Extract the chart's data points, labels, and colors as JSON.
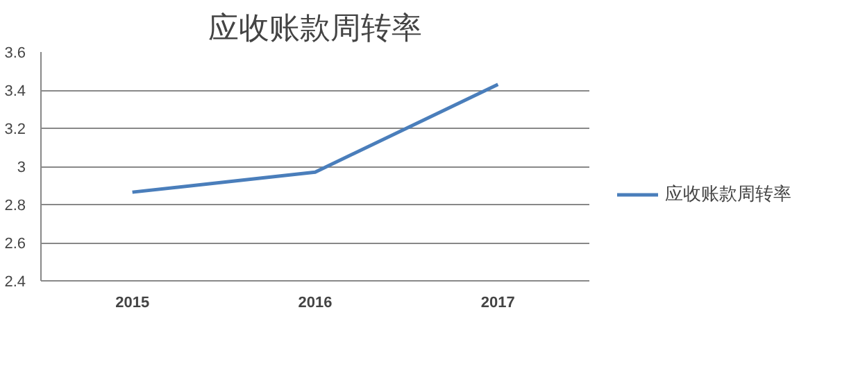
{
  "chart_data": {
    "type": "line",
    "title": "应收账款周转率",
    "categories": [
      "2015",
      "2016",
      "2017"
    ],
    "series": [
      {
        "name": "应收账款周转率",
        "color": "#4a7ebb",
        "values": [
          2.865,
          2.97,
          3.43
        ]
      }
    ],
    "ylim": [
      2.4,
      3.6
    ],
    "yticks": [
      2.4,
      2.6,
      2.8,
      3,
      3.2,
      3.4,
      3.6
    ],
    "grid": "y",
    "legend": "right",
    "marker": "none",
    "line_style": "solid"
  }
}
